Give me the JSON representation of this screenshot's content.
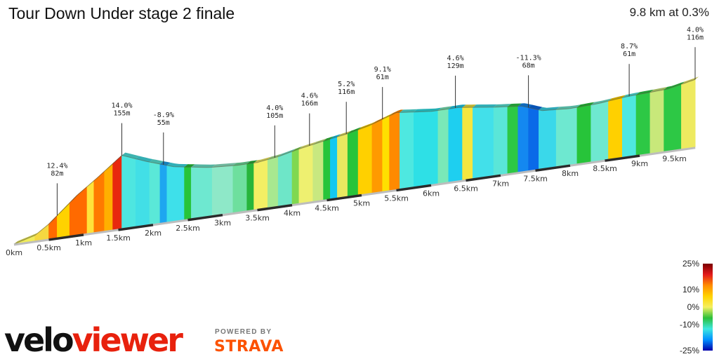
{
  "header": {
    "title": "Tour Down Under stage 2 finale",
    "summary": "9.8 km at 0.3%"
  },
  "legend": {
    "labels": [
      "25%",
      "10%",
      "0%",
      "-10%",
      "-25%"
    ],
    "label_values": [
      25,
      10,
      0,
      -10,
      -25
    ],
    "colors": [
      "#7a0000",
      "#e31a1c",
      "#ff8c00",
      "#ffd200",
      "#f5f060",
      "#2bbf3a",
      "#3ee8e0",
      "#0090ff",
      "#0000aa"
    ]
  },
  "brand": {
    "velo": "velo",
    "viewer": "viewer",
    "powered_by": "POWERED BY",
    "strava": "STRAVA"
  },
  "chart_data": {
    "type": "area",
    "title": "Tour Down Under stage 2 finale",
    "x_unit": "km",
    "xlim": [
      0,
      9.8
    ],
    "x_ticks": [
      0,
      0.5,
      1,
      1.5,
      2,
      2.5,
      3,
      3.5,
      4,
      4.5,
      5,
      5.5,
      6,
      6.5,
      7,
      7.5,
      8,
      8.5,
      9,
      9.5
    ],
    "x_tick_labels": [
      "0km",
      "0.5km",
      "1km",
      "1.5km",
      "2km",
      "2.5km",
      "3km",
      "3.5km",
      "4km",
      "4.5km",
      "5km",
      "5.5km",
      "6km",
      "6.5km",
      "7km",
      "7.5km",
      "8km",
      "8.5km",
      "9km",
      "9.5km"
    ],
    "profile": [
      {
        "x": 0.0,
        "elev": 0
      },
      {
        "x": 0.3,
        "elev": 6
      },
      {
        "x": 0.5,
        "elev": 16
      },
      {
        "x": 0.9,
        "elev": 42
      },
      {
        "x": 1.2,
        "elev": 58
      },
      {
        "x": 1.55,
        "elev": 78
      },
      {
        "x": 1.9,
        "elev": 68
      },
      {
        "x": 2.3,
        "elev": 58
      },
      {
        "x": 2.8,
        "elev": 52
      },
      {
        "x": 3.2,
        "elev": 50
      },
      {
        "x": 3.5,
        "elev": 50
      },
      {
        "x": 3.8,
        "elev": 53
      },
      {
        "x": 4.1,
        "elev": 58
      },
      {
        "x": 4.4,
        "elev": 62
      },
      {
        "x": 4.8,
        "elev": 67
      },
      {
        "x": 5.1,
        "elev": 72
      },
      {
        "x": 5.5,
        "elev": 82
      },
      {
        "x": 6.0,
        "elev": 78
      },
      {
        "x": 6.4,
        "elev": 78
      },
      {
        "x": 6.9,
        "elev": 73
      },
      {
        "x": 7.3,
        "elev": 70
      },
      {
        "x": 7.6,
        "elev": 62
      },
      {
        "x": 8.0,
        "elev": 60
      },
      {
        "x": 8.4,
        "elev": 61
      },
      {
        "x": 8.8,
        "elev": 64
      },
      {
        "x": 9.1,
        "elev": 65
      },
      {
        "x": 9.4,
        "elev": 66
      },
      {
        "x": 9.8,
        "elev": 72
      }
    ],
    "annotations": [
      {
        "x": 0.62,
        "grade": "12.4%",
        "length": "82m"
      },
      {
        "x": 1.55,
        "grade": "14.0%",
        "length": "155m"
      },
      {
        "x": 2.15,
        "grade": "-8.9%",
        "length": "55m"
      },
      {
        "x": 3.75,
        "grade": "4.0%",
        "length": "105m"
      },
      {
        "x": 4.25,
        "grade": "4.6%",
        "length": "166m"
      },
      {
        "x": 4.78,
        "grade": "5.2%",
        "length": "116m"
      },
      {
        "x": 5.3,
        "grade": "9.1%",
        "length": "61m"
      },
      {
        "x": 6.35,
        "grade": "4.6%",
        "length": "129m"
      },
      {
        "x": 7.4,
        "grade": "-11.3%",
        "length": "68m"
      },
      {
        "x": 8.85,
        "grade": "8.7%",
        "length": "61m"
      },
      {
        "x": 9.8,
        "grade": "4.0%",
        "length": "116m"
      }
    ],
    "segments": [
      {
        "from": 0.0,
        "to": 0.3,
        "color": "#f0ec5a"
      },
      {
        "from": 0.3,
        "to": 0.5,
        "color": "#f5d840"
      },
      {
        "from": 0.5,
        "to": 0.62,
        "color": "#ff6a00"
      },
      {
        "from": 0.62,
        "to": 0.8,
        "color": "#ffd200"
      },
      {
        "from": 0.8,
        "to": 1.05,
        "color": "#ff6a00"
      },
      {
        "from": 1.05,
        "to": 1.15,
        "color": "#ffe23a"
      },
      {
        "from": 1.15,
        "to": 1.3,
        "color": "#ff7a00"
      },
      {
        "from": 1.3,
        "to": 1.42,
        "color": "#ffb000"
      },
      {
        "from": 1.42,
        "to": 1.55,
        "color": "#e8280e"
      },
      {
        "from": 1.55,
        "to": 1.75,
        "color": "#4ee6e0"
      },
      {
        "from": 1.75,
        "to": 1.95,
        "color": "#42dfe6"
      },
      {
        "from": 1.95,
        "to": 2.1,
        "color": "#5ae8d8"
      },
      {
        "from": 2.1,
        "to": 2.2,
        "color": "#1ea6f0"
      },
      {
        "from": 2.2,
        "to": 2.45,
        "color": "#3ee0ea"
      },
      {
        "from": 2.45,
        "to": 2.55,
        "color": "#27c43a"
      },
      {
        "from": 2.55,
        "to": 2.85,
        "color": "#6ee8d0"
      },
      {
        "from": 2.85,
        "to": 3.15,
        "color": "#8ee8c8"
      },
      {
        "from": 3.15,
        "to": 3.35,
        "color": "#6edf9e"
      },
      {
        "from": 3.35,
        "to": 3.45,
        "color": "#27b53a"
      },
      {
        "from": 3.45,
        "to": 3.65,
        "color": "#f3ef64"
      },
      {
        "from": 3.65,
        "to": 3.8,
        "color": "#a8e890"
      },
      {
        "from": 3.8,
        "to": 4.0,
        "color": "#6ee6c8"
      },
      {
        "from": 4.0,
        "to": 4.1,
        "color": "#7fd850"
      },
      {
        "from": 4.1,
        "to": 4.3,
        "color": "#eef070"
      },
      {
        "from": 4.3,
        "to": 4.45,
        "color": "#c8e880"
      },
      {
        "from": 4.45,
        "to": 4.55,
        "color": "#27c43a"
      },
      {
        "from": 4.55,
        "to": 4.65,
        "color": "#14c8f0"
      },
      {
        "from": 4.65,
        "to": 4.8,
        "color": "#e8e860"
      },
      {
        "from": 4.8,
        "to": 4.95,
        "color": "#27c43a"
      },
      {
        "from": 4.95,
        "to": 5.15,
        "color": "#ffd000"
      },
      {
        "from": 5.15,
        "to": 5.3,
        "color": "#ff9a00"
      },
      {
        "from": 5.3,
        "to": 5.4,
        "color": "#ffe000"
      },
      {
        "from": 5.4,
        "to": 5.55,
        "color": "#ff8a00"
      },
      {
        "from": 5.55,
        "to": 5.75,
        "color": "#4ee8e0"
      },
      {
        "from": 5.75,
        "to": 6.1,
        "color": "#2ee0e6"
      },
      {
        "from": 6.1,
        "to": 6.25,
        "color": "#7ae8b8"
      },
      {
        "from": 6.25,
        "to": 6.45,
        "color": "#1ecff0"
      },
      {
        "from": 6.45,
        "to": 6.6,
        "color": "#f5e640"
      },
      {
        "from": 6.6,
        "to": 6.9,
        "color": "#42e0ea"
      },
      {
        "from": 6.9,
        "to": 7.1,
        "color": "#5ae6d8"
      },
      {
        "from": 7.1,
        "to": 7.25,
        "color": "#2dc845"
      },
      {
        "from": 7.25,
        "to": 7.4,
        "color": "#1488f0"
      },
      {
        "from": 7.4,
        "to": 7.55,
        "color": "#0a6ae8"
      },
      {
        "from": 7.55,
        "to": 7.8,
        "color": "#3ad8ea"
      },
      {
        "from": 7.8,
        "to": 8.1,
        "color": "#6ee8d0"
      },
      {
        "from": 8.1,
        "to": 8.3,
        "color": "#27c43a"
      },
      {
        "from": 8.3,
        "to": 8.55,
        "color": "#6ee8d0"
      },
      {
        "from": 8.55,
        "to": 8.75,
        "color": "#ffd000"
      },
      {
        "from": 8.75,
        "to": 8.95,
        "color": "#4ee8e0"
      },
      {
        "from": 8.95,
        "to": 9.15,
        "color": "#2dc845"
      },
      {
        "from": 9.15,
        "to": 9.35,
        "color": "#c8e87a"
      },
      {
        "from": 9.35,
        "to": 9.6,
        "color": "#2dc845"
      },
      {
        "from": 9.6,
        "to": 9.8,
        "color": "#eeea60"
      }
    ]
  }
}
